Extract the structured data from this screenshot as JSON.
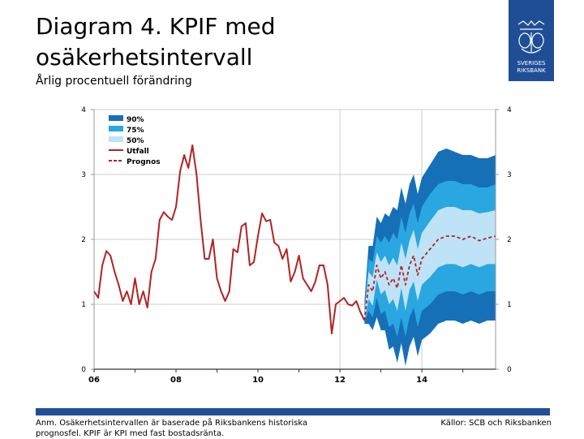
{
  "header": {
    "title_line1": "Diagram 4. KPIF med",
    "title_line2": "osäkerhetsintervall",
    "subtitle": "Årlig procentuell förändring"
  },
  "logo": {
    "text_line1": "SVERIGES",
    "text_line2": "RIKSBANK"
  },
  "footer": {
    "note_line1": "Anm. Osäkerhetsintervallen är baserade på Riksbankens historiska",
    "note_line2": "prognosfel. KPIF är KPI med fast bostadsränta.",
    "source": "Källor: SCB och Riksbanken"
  },
  "colors": {
    "band90": "#1670b8",
    "band75": "#2aa6e0",
    "band50": "#bfe3f6",
    "outcome": "#b22222",
    "brand": "#1f4e96"
  },
  "chart_data": {
    "type": "line",
    "title": "Diagram 4. KPIF med osäkerhetsintervall",
    "ylabel": "Årlig procentuell förändring",
    "xlabel": "",
    "ylim": [
      0,
      4
    ],
    "xlim": [
      2006,
      2015.8
    ],
    "y_ticks": [
      "0",
      "1",
      "2",
      "3",
      "4"
    ],
    "x_tick_labels": [
      "06",
      "08",
      "10",
      "12",
      "14"
    ],
    "x_ticks": [
      2006,
      2008,
      2010,
      2012,
      2014
    ],
    "legend": [
      {
        "label": "90%",
        "kind": "band90"
      },
      {
        "label": "75%",
        "kind": "band75"
      },
      {
        "label": "50%",
        "kind": "band50"
      },
      {
        "label": "Utfall",
        "kind": "outcome"
      },
      {
        "label": "Prognos",
        "kind": "forecast"
      }
    ],
    "legend_position": "top-left",
    "forecast_start_marker": 2012,
    "series": [
      {
        "name": "Utfall",
        "x": [
          2006.0,
          2006.1,
          2006.2,
          2006.3,
          2006.4,
          2006.5,
          2006.6,
          2006.7,
          2006.8,
          2006.9,
          2007.0,
          2007.1,
          2007.2,
          2007.3,
          2007.4,
          2007.5,
          2007.6,
          2007.7,
          2007.8,
          2007.9,
          2008.0,
          2008.1,
          2008.2,
          2008.3,
          2008.4,
          2008.5,
          2008.6,
          2008.7,
          2008.8,
          2008.9,
          2009.0,
          2009.1,
          2009.2,
          2009.3,
          2009.4,
          2009.5,
          2009.6,
          2009.7,
          2009.8,
          2009.9,
          2010.0,
          2010.1,
          2010.2,
          2010.3,
          2010.4,
          2010.5,
          2010.6,
          2010.7,
          2010.8,
          2010.9,
          2011.0,
          2011.1,
          2011.2,
          2011.3,
          2011.4,
          2011.5,
          2011.6,
          2011.7,
          2011.8,
          2011.9,
          2012.0,
          2012.1,
          2012.2,
          2012.3,
          2012.4,
          2012.5,
          2012.6
        ],
        "values": [
          1.2,
          1.1,
          1.6,
          1.82,
          1.75,
          1.5,
          1.3,
          1.05,
          1.2,
          1.0,
          1.4,
          1.0,
          1.2,
          0.95,
          1.5,
          1.7,
          2.3,
          2.42,
          2.35,
          2.3,
          2.5,
          3.05,
          3.3,
          3.1,
          3.45,
          3.0,
          2.3,
          1.7,
          1.7,
          2.0,
          1.4,
          1.2,
          1.05,
          1.2,
          1.85,
          1.8,
          2.2,
          2.25,
          1.6,
          1.65,
          2.05,
          2.4,
          2.28,
          2.3,
          1.95,
          1.9,
          1.7,
          1.85,
          1.35,
          1.5,
          1.75,
          1.4,
          1.3,
          1.2,
          1.35,
          1.6,
          1.6,
          1.3,
          0.55,
          1.0,
          1.05,
          1.1,
          1.0,
          0.98,
          1.05,
          0.88,
          0.75
        ]
      },
      {
        "name": "Prognos",
        "x": [
          2012.6,
          2012.7,
          2012.8,
          2012.9,
          2013.0,
          2013.1,
          2013.2,
          2013.3,
          2013.4,
          2013.5,
          2013.6,
          2013.7,
          2013.8,
          2013.9,
          2014.0,
          2014.2,
          2014.4,
          2014.6,
          2014.8,
          2015.0,
          2015.2,
          2015.4,
          2015.6,
          2015.8
        ],
        "values": [
          0.75,
          1.3,
          1.2,
          1.6,
          1.4,
          1.5,
          1.3,
          1.4,
          1.25,
          1.6,
          1.3,
          1.6,
          1.75,
          1.45,
          1.7,
          1.85,
          2.0,
          2.05,
          2.05,
          2.0,
          2.05,
          1.98,
          2.02,
          2.05
        ]
      }
    ],
    "bands": [
      {
        "name": "90%",
        "x": [
          2012.6,
          2012.7,
          2012.8,
          2012.9,
          2013.0,
          2013.1,
          2013.2,
          2013.3,
          2013.4,
          2013.5,
          2013.6,
          2013.7,
          2013.8,
          2013.9,
          2014.0,
          2014.2,
          2014.4,
          2014.6,
          2014.8,
          2015.0,
          2015.2,
          2015.4,
          2015.6,
          2015.8
        ],
        "upper": [
          1.05,
          1.9,
          1.9,
          2.35,
          2.25,
          2.4,
          2.35,
          2.5,
          2.45,
          2.8,
          2.55,
          2.85,
          3.0,
          2.7,
          2.95,
          3.15,
          3.35,
          3.4,
          3.35,
          3.3,
          3.3,
          3.25,
          3.25,
          3.3
        ],
        "lower": [
          0.7,
          0.7,
          0.6,
          0.8,
          0.6,
          0.6,
          0.3,
          0.35,
          0.1,
          0.4,
          0.05,
          0.35,
          0.5,
          0.2,
          0.45,
          0.55,
          0.7,
          0.75,
          0.75,
          0.7,
          0.75,
          0.7,
          0.75,
          0.75
        ]
      },
      {
        "name": "75%",
        "x": [
          2012.6,
          2012.7,
          2012.8,
          2012.9,
          2013.0,
          2013.1,
          2013.2,
          2013.3,
          2013.4,
          2013.5,
          2013.6,
          2013.7,
          2013.8,
          2013.9,
          2014.0,
          2014.2,
          2014.4,
          2014.6,
          2014.8,
          2015.0,
          2015.2,
          2015.4,
          2015.6,
          2015.8
        ],
        "upper": [
          0.95,
          1.7,
          1.65,
          2.05,
          1.95,
          2.05,
          1.95,
          2.1,
          2.0,
          2.35,
          2.1,
          2.4,
          2.55,
          2.25,
          2.5,
          2.7,
          2.85,
          2.9,
          2.9,
          2.85,
          2.85,
          2.8,
          2.8,
          2.85
        ],
        "lower": [
          0.72,
          0.9,
          0.8,
          1.1,
          0.85,
          0.9,
          0.65,
          0.7,
          0.5,
          0.8,
          0.5,
          0.8,
          0.95,
          0.65,
          0.9,
          1.0,
          1.15,
          1.2,
          1.2,
          1.15,
          1.2,
          1.15,
          1.2,
          1.2
        ]
      },
      {
        "name": "50%",
        "x": [
          2012.6,
          2012.7,
          2012.8,
          2012.9,
          2013.0,
          2013.1,
          2013.2,
          2013.3,
          2013.4,
          2013.5,
          2013.6,
          2013.7,
          2013.8,
          2013.9,
          2014.0,
          2014.2,
          2014.4,
          2014.6,
          2014.8,
          2015.0,
          2015.2,
          2015.4,
          2015.6,
          2015.8
        ],
        "upper": [
          0.85,
          1.5,
          1.42,
          1.8,
          1.65,
          1.75,
          1.6,
          1.72,
          1.6,
          1.95,
          1.7,
          1.98,
          2.15,
          1.85,
          2.1,
          2.28,
          2.45,
          2.5,
          2.5,
          2.45,
          2.45,
          2.4,
          2.42,
          2.45
        ],
        "lower": [
          0.73,
          1.08,
          0.98,
          1.38,
          1.15,
          1.22,
          1.0,
          1.08,
          0.9,
          1.25,
          0.9,
          1.22,
          1.35,
          1.05,
          1.3,
          1.42,
          1.57,
          1.62,
          1.62,
          1.57,
          1.62,
          1.57,
          1.62,
          1.62
        ]
      }
    ]
  }
}
